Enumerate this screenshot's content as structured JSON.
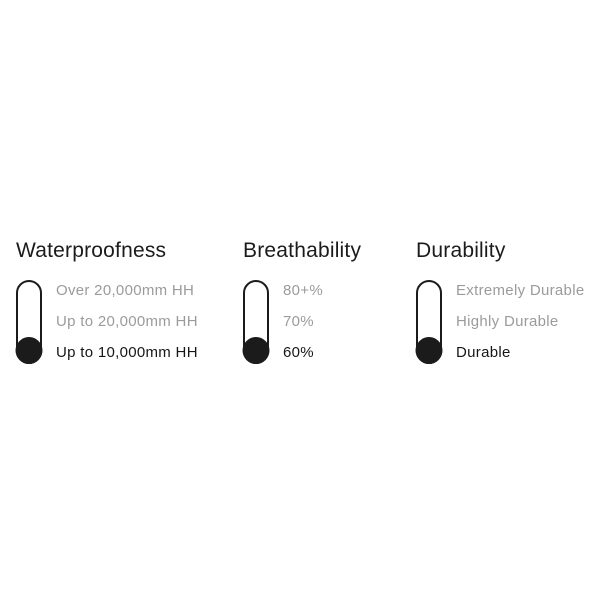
{
  "page": {
    "background": "#ffffff"
  },
  "colors": {
    "text_primary": "#1b1b1b",
    "text_muted": "#9b9b9b",
    "gauge_outline": "#1b1b1b",
    "gauge_fill": "#1b1b1b"
  },
  "features": [
    {
      "title": "Waterproofness",
      "gauge": {
        "icon": "pill-gauge-icon",
        "level": 1,
        "levels_total": 3,
        "filled_position": "bottom"
      },
      "levels": [
        {
          "label": "Over 20,000mm HH",
          "selected": false
        },
        {
          "label": "Up to 20,000mm HH",
          "selected": false
        },
        {
          "label": "Up to 10,000mm HH",
          "selected": true
        }
      ]
    },
    {
      "title": "Breathability",
      "gauge": {
        "icon": "pill-gauge-icon",
        "level": 1,
        "levels_total": 3,
        "filled_position": "bottom"
      },
      "levels": [
        {
          "label": "80+%",
          "selected": false
        },
        {
          "label": "70%",
          "selected": false
        },
        {
          "label": "60%",
          "selected": true
        }
      ]
    },
    {
      "title": "Durability",
      "gauge": {
        "icon": "pill-gauge-icon",
        "level": 1,
        "levels_total": 3,
        "filled_position": "bottom"
      },
      "levels": [
        {
          "label": "Extremely Durable",
          "selected": false
        },
        {
          "label": "Highly Durable",
          "selected": false
        },
        {
          "label": "Durable",
          "selected": true
        }
      ]
    }
  ]
}
